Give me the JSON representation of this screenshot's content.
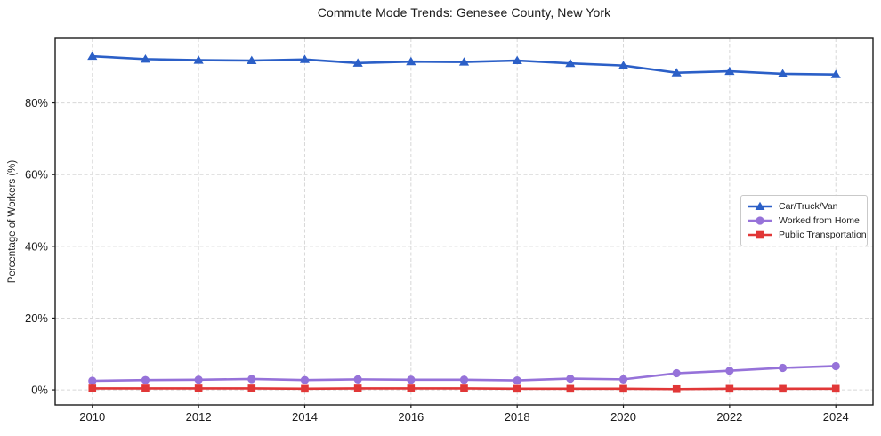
{
  "figure": {
    "title": "Commute Mode Trends: Genesee County, New York"
  },
  "chart_data": {
    "type": "line",
    "title": "Commute Mode Trends: Genesee County, New York",
    "xlabel": "",
    "ylabel": "Percentage of Workers (%)",
    "x": [
      2010,
      2011,
      2012,
      2013,
      2014,
      2015,
      2016,
      2017,
      2018,
      2019,
      2020,
      2021,
      2022,
      2023,
      2024
    ],
    "series": [
      {
        "name": "Car/Truck/Van",
        "color": "#2b5fc7",
        "marker": "triangle",
        "values": [
          93.0,
          92.2,
          91.9,
          91.8,
          92.1,
          91.1,
          91.5,
          91.4,
          91.8,
          91.0,
          90.4,
          88.4,
          88.8,
          88.1,
          87.9
        ]
      },
      {
        "name": "Worked from Home",
        "color": "#9672d9",
        "marker": "circle",
        "values": [
          2.5,
          2.7,
          2.8,
          3.0,
          2.7,
          2.9,
          2.8,
          2.8,
          2.6,
          3.1,
          2.9,
          4.6,
          5.3,
          6.1,
          6.6
        ]
      },
      {
        "name": "Public Transportation",
        "color": "#e13737",
        "marker": "square",
        "values": [
          0.4,
          0.4,
          0.4,
          0.4,
          0.3,
          0.4,
          0.4,
          0.4,
          0.3,
          0.3,
          0.3,
          0.2,
          0.3,
          0.3,
          0.3
        ]
      }
    ],
    "xticks": [
      2010,
      2012,
      2014,
      2016,
      2018,
      2020,
      2022,
      2024
    ],
    "yticks": [
      0,
      20,
      40,
      60,
      80
    ],
    "ytick_suffix": "%",
    "xlim": [
      2009.3,
      2024.7
    ],
    "ylim": [
      -4.2,
      98.0
    ],
    "grid": true,
    "legend_position": "right-center"
  },
  "style": {
    "grid_color": "#d8d8d8",
    "axis_color": "#1c1c1c",
    "tick_label_color": "#1a1a1a",
    "background": "#ffffff"
  }
}
